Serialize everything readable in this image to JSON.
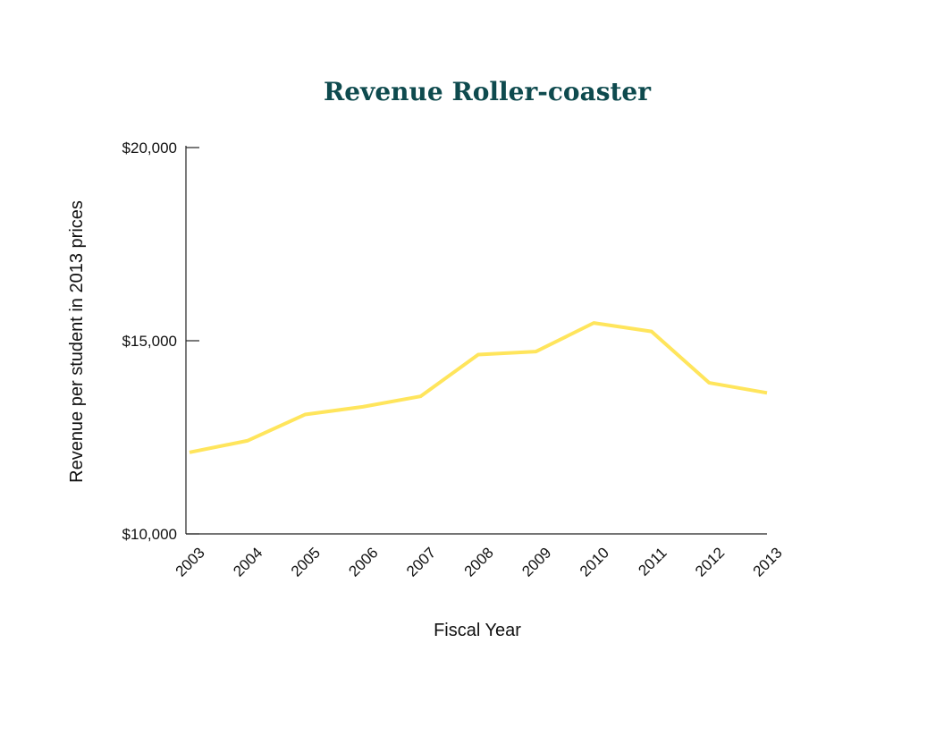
{
  "chart_data": {
    "type": "line",
    "title": "Revenue Roller-coaster",
    "xlabel": "Fiscal Year",
    "ylabel": "Revenue per student in 2013 prices",
    "categories": [
      "2003",
      "2004",
      "2005",
      "2006",
      "2007",
      "2008",
      "2009",
      "2010",
      "2011",
      "2012",
      "2013"
    ],
    "series": [
      {
        "name": "Revenue per student",
        "values": [
          12110,
          12410,
          13090,
          13290,
          13560,
          14640,
          14720,
          15460,
          15240,
          13910,
          13650
        ]
      }
    ],
    "ylim": [
      10000,
      20000
    ],
    "yticks": [
      10000,
      15000,
      20000
    ],
    "ytick_labels": [
      "$10,000",
      "$15,000",
      "$20,000"
    ],
    "grid": false,
    "colors": {
      "line": "#ffe55c",
      "title": "#0e4a4e",
      "axis": "#222222"
    }
  }
}
